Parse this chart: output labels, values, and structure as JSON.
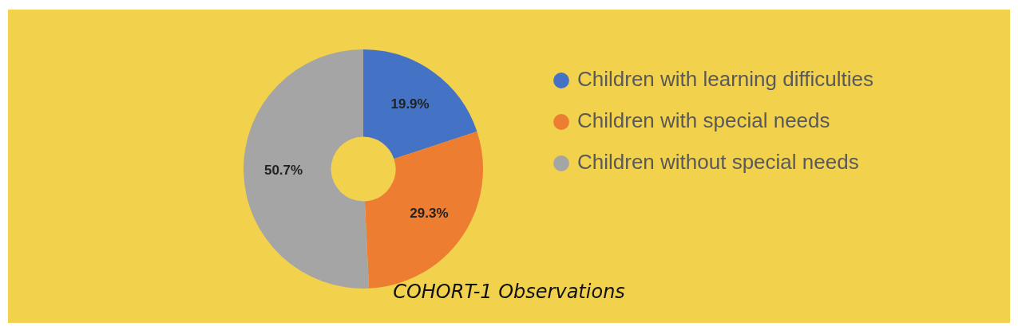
{
  "chart_data": {
    "type": "donut",
    "categories": [
      "Children with learning difficulties",
      "Children with special needs",
      "Children without special needs"
    ],
    "values": [
      19.9,
      29.3,
      50.7
    ],
    "colors": [
      "#4472c4",
      "#ed7d31",
      "#a5a5a5"
    ],
    "value_labels": [
      "19.9%",
      "29.3%",
      "50.7%"
    ],
    "legend": "right",
    "annotations": [
      "COHORT-1 Observations"
    ]
  }
}
